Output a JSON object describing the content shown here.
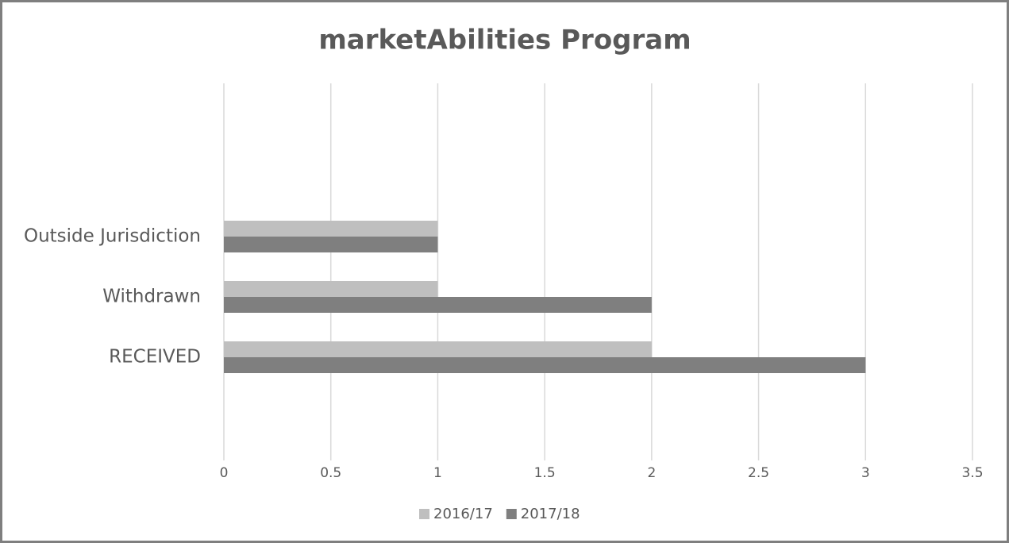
{
  "chart_data": {
    "type": "bar",
    "orientation": "horizontal",
    "title": "marketAbilities Program",
    "categories": [
      "RECEIVED",
      "Withdrawn",
      "Outside Jurisdiction"
    ],
    "series": [
      {
        "name": "2016/17",
        "color": "#bfbfbf",
        "values": [
          2,
          1,
          1
        ]
      },
      {
        "name": "2017/18",
        "color": "#7f7f7f",
        "values": [
          3,
          2,
          1
        ]
      }
    ],
    "xlim": [
      0,
      3.5
    ],
    "xticks": [
      0,
      0.5,
      1,
      1.5,
      2,
      2.5,
      3,
      3.5
    ],
    "grid": true,
    "legend": "bottom"
  }
}
